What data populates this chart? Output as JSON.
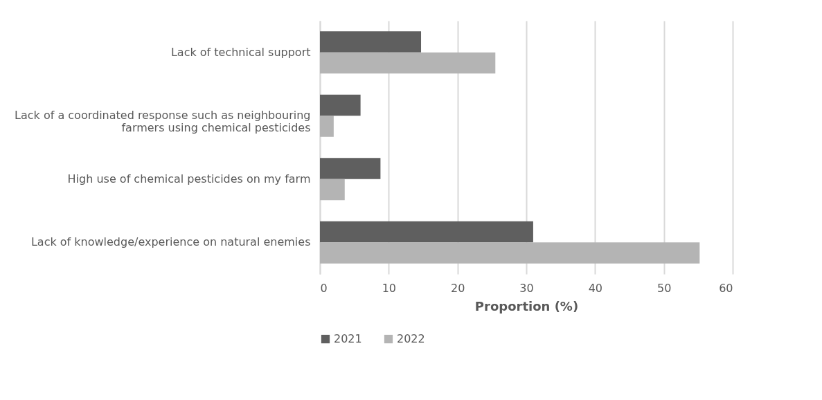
{
  "chart_data": {
    "type": "bar",
    "orientation": "horizontal",
    "xlabel": "Proportion (%)",
    "categories": [
      "Lack of technical support",
      "Lack of a coordinated response such as neighbouring farmers using chemical pesticides",
      "High use of chemical pesticides on my farm",
      "Lack of knowledge/experience on natural enemies"
    ],
    "series": [
      {
        "name": "2021",
        "color": "#5f5f5f",
        "values": [
          14.7,
          5.9,
          8.8,
          31.0
        ]
      },
      {
        "name": "2022",
        "color": "#b4b4b4",
        "values": [
          25.5,
          2.0,
          3.6,
          55.2
        ]
      }
    ],
    "xlim": [
      0,
      60
    ],
    "xticks": [
      0,
      10,
      20,
      30,
      40,
      50,
      60
    ],
    "grid": "x",
    "legend": "bottom"
  }
}
